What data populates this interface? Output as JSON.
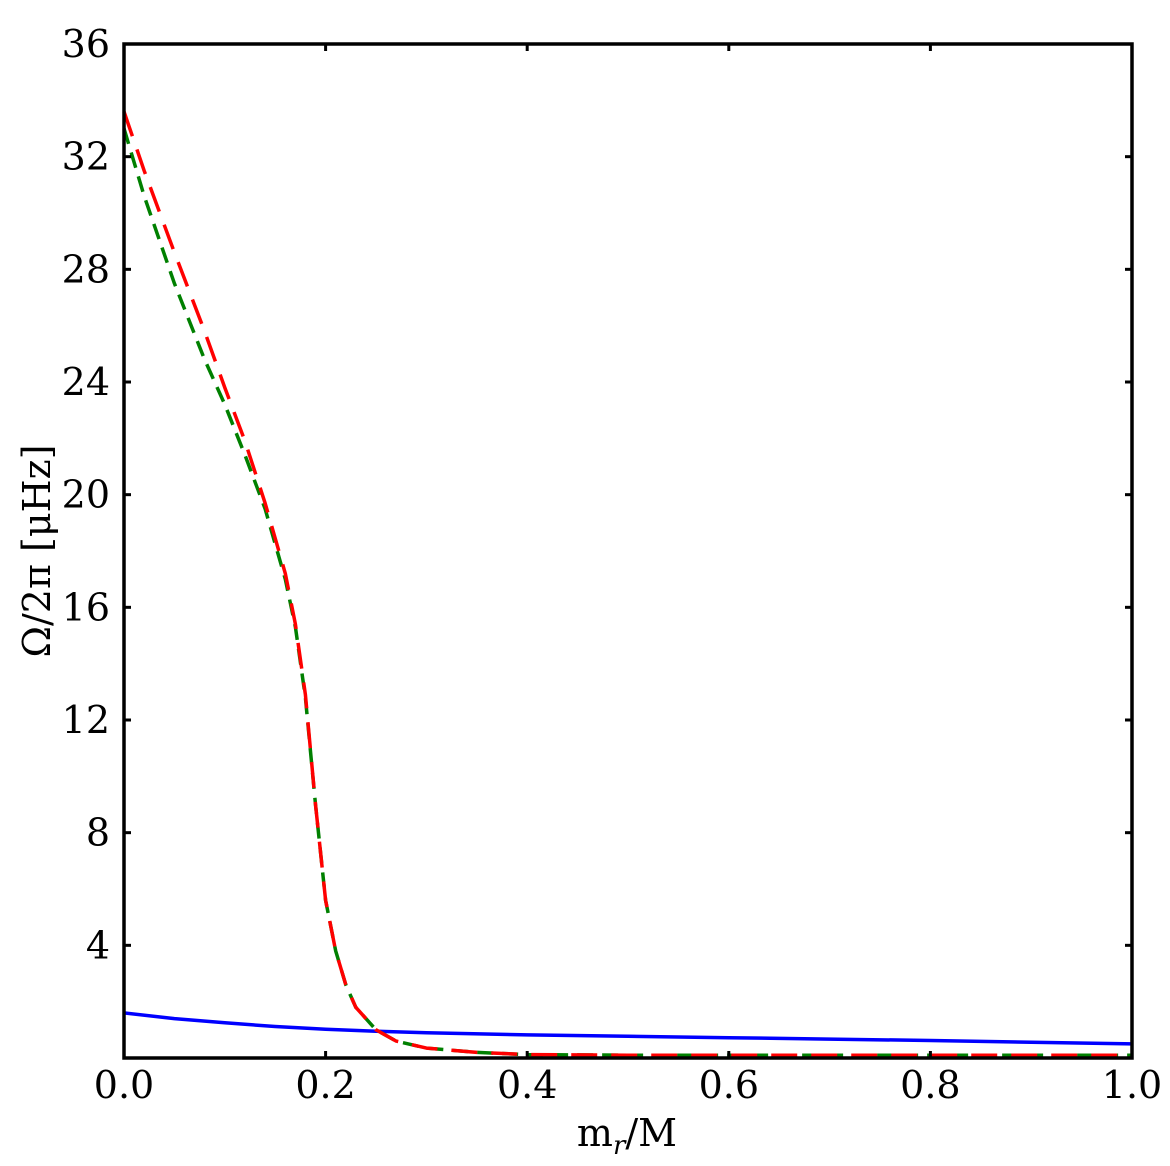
{
  "chart_data": {
    "type": "line",
    "title": "",
    "xlabel": "m_r/M",
    "ylabel": "Ω/2π [μHz]",
    "xlabel_parts": {
      "base": "m",
      "sub": "r",
      "tail": "/M"
    },
    "ylabel_text": "Ω/2π [μHz]",
    "xlim": [
      0.0,
      1.0
    ],
    "ylim": [
      0,
      36
    ],
    "x_ticks": [
      0.0,
      0.2,
      0.4,
      0.6,
      0.8,
      1.0
    ],
    "x_tick_labels": [
      "0.0",
      "0.2",
      "0.4",
      "0.6",
      "0.8",
      "1.0"
    ],
    "y_ticks": [
      4,
      8,
      12,
      16,
      20,
      24,
      28,
      32,
      36
    ],
    "y_tick_labels": [
      "4",
      "8",
      "12",
      "16",
      "20",
      "24",
      "28",
      "32",
      "36"
    ],
    "grid": false,
    "legend": "none",
    "series": [
      {
        "color": "#0000ff",
        "style": "solid",
        "x": [
          0.0,
          0.05,
          0.1,
          0.15,
          0.2,
          0.25,
          0.3,
          0.4,
          0.5,
          0.6,
          0.7,
          0.8,
          0.9,
          1.0
        ],
        "values": [
          1.6,
          1.4,
          1.25,
          1.12,
          1.02,
          0.95,
          0.9,
          0.82,
          0.77,
          0.72,
          0.67,
          0.62,
          0.56,
          0.5
        ]
      },
      {
        "color": "#008000",
        "style": "dashed",
        "x": [
          0.0,
          0.02,
          0.05,
          0.08,
          0.1,
          0.12,
          0.14,
          0.16,
          0.17,
          0.18,
          0.19,
          0.2,
          0.21,
          0.22,
          0.23,
          0.25,
          0.27,
          0.3,
          0.35,
          0.4,
          0.5,
          0.6,
          0.7,
          0.8,
          0.9,
          1.0
        ],
        "values": [
          33.0,
          30.6,
          27.5,
          24.8,
          23.2,
          21.4,
          19.5,
          17.0,
          15.3,
          12.8,
          9.0,
          5.6,
          3.8,
          2.6,
          1.8,
          1.0,
          0.6,
          0.35,
          0.2,
          0.12,
          0.1,
          0.1,
          0.1,
          0.1,
          0.1,
          0.1
        ]
      },
      {
        "color": "#ff0000",
        "style": "dashed",
        "x": [
          0.0,
          0.02,
          0.05,
          0.08,
          0.1,
          0.12,
          0.14,
          0.16,
          0.17,
          0.18,
          0.19,
          0.2,
          0.21,
          0.22,
          0.23,
          0.25,
          0.27,
          0.3,
          0.35,
          0.4,
          0.5,
          0.6,
          0.7,
          0.8,
          0.9,
          1.0
        ],
        "values": [
          33.6,
          31.5,
          28.6,
          25.8,
          23.8,
          21.9,
          19.7,
          17.2,
          15.4,
          12.9,
          9.0,
          5.6,
          3.8,
          2.6,
          1.8,
          1.0,
          0.6,
          0.35,
          0.2,
          0.12,
          0.1,
          0.1,
          0.1,
          0.1,
          0.1,
          0.1
        ]
      }
    ]
  }
}
